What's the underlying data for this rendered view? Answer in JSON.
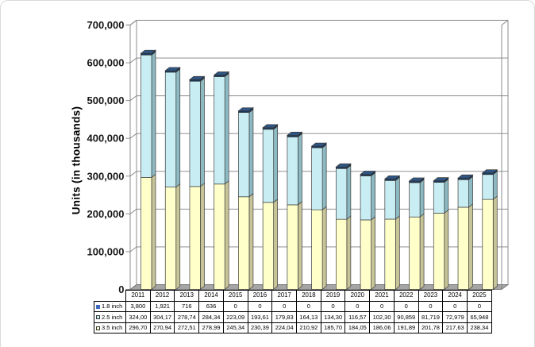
{
  "chart": {
    "y_axis_title": "Units (in thousands)",
    "y_ticks": [
      "0",
      "100,000",
      "200,000",
      "300,000",
      "400,000",
      "500,000",
      "600,000",
      "700,000"
    ]
  },
  "chart_data": {
    "type": "bar",
    "stacked": true,
    "style": "3d-column",
    "title": "",
    "xlabel": "",
    "ylabel": "Units (in thousands)",
    "ylim": [
      0,
      700000
    ],
    "grid": true,
    "legend_position": "left-of-data-table",
    "categories": [
      "2011",
      "2012",
      "2013",
      "2014",
      "2015",
      "2016",
      "2017",
      "2018",
      "2019",
      "2020",
      "2021",
      "2022",
      "2023",
      "2024",
      "2025"
    ],
    "series": [
      {
        "name": "1.8 inch",
        "color_front": "#17375E",
        "color_side": "#0E2444",
        "color_top": "#2E5584",
        "values": [
          3800,
          1921,
          716,
          636,
          0,
          0,
          0,
          0,
          0,
          0,
          0,
          0,
          0,
          0,
          0
        ]
      },
      {
        "name": "2.5 inch",
        "color_front": "#C8EEF4",
        "color_side": "#8CB9C2",
        "color_top": "#A5D2DA",
        "values": [
          324000,
          304170,
          278740,
          284340,
          223090,
          193610,
          179830,
          164130,
          134300,
          116570,
          102300,
          90859,
          81719,
          72979,
          65948
        ]
      },
      {
        "name": "3.5 inch",
        "color_front": "#FFFFC9",
        "color_side": "#C7C497",
        "color_top": "#E8E6B2",
        "values": [
          296700,
          270940,
          272510,
          278990,
          245340,
          230390,
          224040,
          210920,
          185700,
          184050,
          186060,
          191890,
          201780,
          217630,
          238340
        ]
      }
    ]
  },
  "table": {
    "years": [
      "2011",
      "2012",
      "2013",
      "2014",
      "2015",
      "2016",
      "2017",
      "2018",
      "2019",
      "2020",
      "2021",
      "2022",
      "2023",
      "2024",
      "2025"
    ],
    "rows": [
      {
        "label": "1.8 inch",
        "swatch_color": "#3E6BBE",
        "swatch_bordered": false,
        "values": [
          "3,800",
          "1,921",
          "716",
          "636",
          "0",
          "0",
          "0",
          "0",
          "0",
          "0",
          "0",
          "0",
          "0",
          "0",
          "0"
        ]
      },
      {
        "label": "2.5 inch",
        "swatch_color": "#C9EFF4",
        "swatch_bordered": true,
        "values": [
          "324,00",
          "304,17",
          "278,74",
          "284,34",
          "223,09",
          "193,61",
          "179,83",
          "164,13",
          "134,30",
          "116,57",
          "102,30",
          "90,859",
          "81,719",
          "72,979",
          "65,948"
        ]
      },
      {
        "label": "3.5 inch",
        "swatch_color": "#FFFFC9",
        "swatch_bordered": true,
        "values": [
          "296,70",
          "270,94",
          "272,51",
          "278,99",
          "245,34",
          "230,39",
          "224,04",
          "210,92",
          "185,70",
          "184,05",
          "186,06",
          "191,89",
          "201,78",
          "217,63",
          "238,34"
        ]
      }
    ]
  },
  "colors": {
    "gridline": "#808080",
    "wall_edge": "#808080",
    "floor_fill": "#A5A5A5",
    "floor_edge": "#6B6B6B",
    "bar_outline": "#3C3C3C"
  }
}
